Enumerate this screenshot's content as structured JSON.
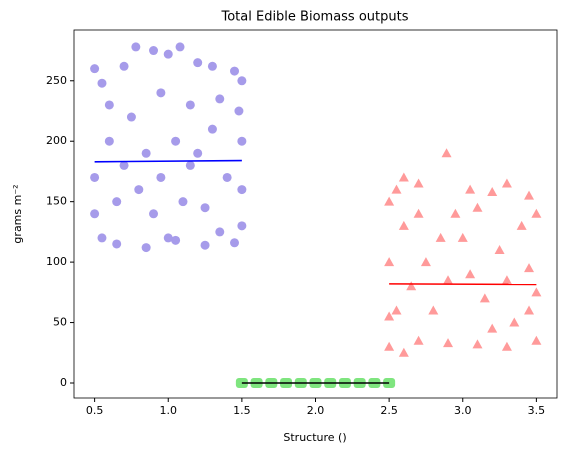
{
  "chart_data": {
    "type": "scatter",
    "title": "Total Edible Biomass outputs",
    "xlabel": "Structure ()",
    "ylabel": "grams m⁻²",
    "xlim": [
      0.36,
      3.64
    ],
    "ylim": [
      -12.4,
      292
    ],
    "xticks": [
      0.5,
      {
        "value": 1,
        "label": "1.0"
      },
      1.5,
      {
        "value": 2,
        "label": "2.0"
      },
      2.5,
      {
        "value": 3,
        "label": "3.0"
      },
      3.5
    ],
    "yticks": [
      0,
      50,
      100,
      150,
      200,
      250
    ],
    "series": [
      {
        "color": "#a69bea",
        "marker": "circle",
        "x": [
          0.5,
          0.55,
          0.6,
          0.7,
          0.78,
          0.9,
          1.0,
          1.08,
          1.2,
          1.3,
          1.45,
          1.5,
          0.6,
          0.7,
          0.8,
          0.9,
          1.0,
          1.1,
          1.2,
          1.3,
          1.4,
          1.5,
          0.55,
          0.65,
          0.85,
          1.05,
          1.25,
          1.45,
          0.75,
          0.95,
          1.15,
          1.35,
          0.5,
          0.5,
          1.5,
          1.5,
          0.85,
          1.05,
          1.25,
          0.65,
          0.95,
          1.15,
          1.35,
          1.48
        ],
        "y": [
          260,
          248,
          230,
          262,
          278,
          275,
          272,
          278,
          265,
          262,
          258,
          250,
          200,
          180,
          160,
          140,
          120,
          150,
          190,
          210,
          170,
          130,
          120,
          115,
          112,
          118,
          114,
          116,
          220,
          240,
          230,
          235,
          170,
          140,
          200,
          160,
          190,
          200,
          145,
          150,
          170,
          180,
          125,
          225
        ]
      },
      {
        "color": "#7fe57f",
        "marker": "square",
        "x": [
          1.5,
          1.6,
          1.7,
          1.8,
          1.9,
          2.0,
          2.1,
          2.2,
          2.3,
          2.4,
          2.5
        ],
        "y": [
          0,
          0,
          0,
          0,
          0,
          0,
          0,
          0,
          0,
          0,
          0
        ]
      },
      {
        "color": "#ff9a9a",
        "marker": "triangle",
        "x": [
          2.5,
          2.55,
          2.6,
          2.7,
          2.89,
          3.05,
          3.2,
          3.3,
          3.45,
          3.5,
          2.5,
          2.6,
          2.7,
          2.9,
          3.1,
          3.3,
          3.5,
          2.55,
          2.65,
          2.75,
          2.85,
          2.95,
          3.05,
          3.15,
          3.25,
          3.35,
          3.45,
          3.5,
          2.5,
          2.6,
          2.8,
          3.0,
          3.2,
          3.4,
          2.7,
          3.1,
          2.9,
          3.3,
          2.5,
          3.45
        ],
        "y": [
          150,
          160,
          170,
          165,
          190,
          160,
          158,
          165,
          155,
          140,
          30,
          25,
          35,
          33,
          32,
          30,
          35,
          60,
          80,
          100,
          120,
          140,
          90,
          70,
          110,
          50,
          95,
          75,
          100,
          130,
          60,
          120,
          45,
          130,
          140,
          145,
          85,
          85,
          55,
          60
        ]
      }
    ],
    "lines": [
      {
        "color": "#0000ff",
        "x": [
          0.5,
          1.5
        ],
        "y": [
          183,
          184
        ]
      },
      {
        "color": "#000000",
        "x": [
          1.5,
          2.5
        ],
        "y": [
          0,
          0
        ]
      },
      {
        "color": "#ff0000",
        "x": [
          2.5,
          3.5
        ],
        "y": [
          82,
          81.5
        ]
      }
    ]
  }
}
